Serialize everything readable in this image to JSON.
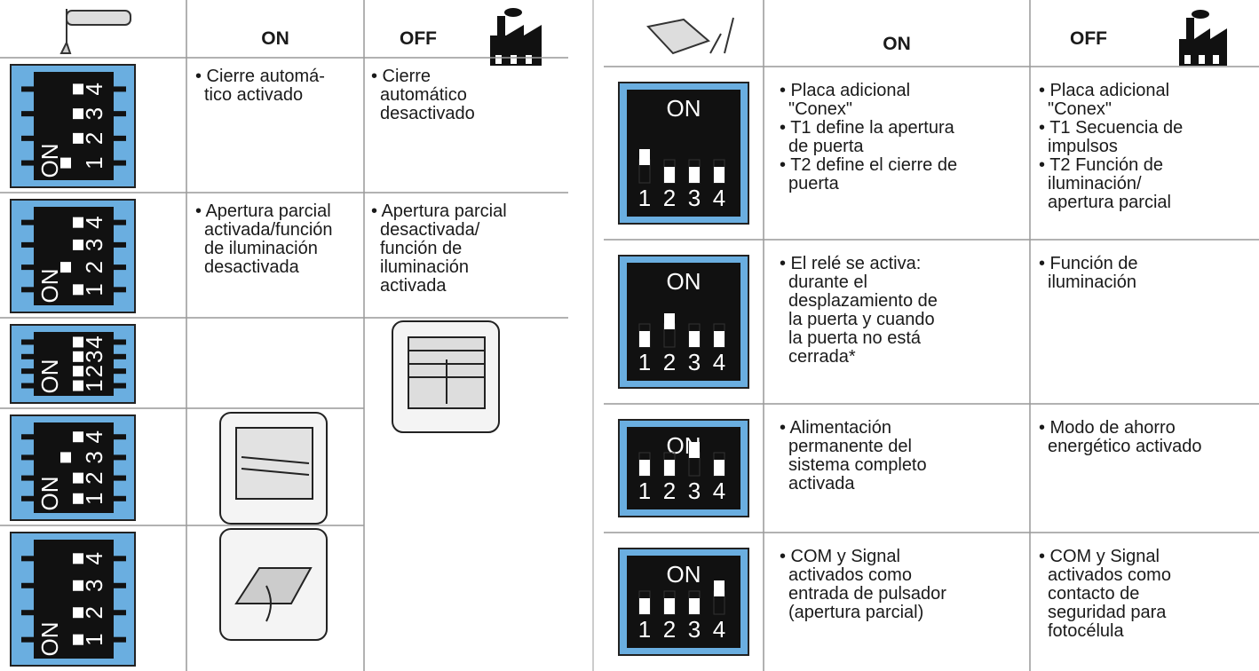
{
  "dip_switch": {
    "on": "ON",
    "numbers": [
      "1",
      "2",
      "3",
      "4"
    ]
  },
  "left_table": {
    "header": {
      "on": "ON",
      "off": "OFF"
    },
    "rows": [
      {
        "on": [
          "• Cierre automá-",
          "tico activado"
        ],
        "off": [
          "• Cierre",
          "automático",
          "desactivado"
        ]
      },
      {
        "on": [
          "• Apertura parcial",
          "activada/función",
          "de iluminación",
          "desactivada"
        ],
        "off": [
          "• Apertura parcial",
          "desactivada/",
          "función de",
          "iluminación",
          "activada"
        ]
      }
    ]
  },
  "right_table": {
    "header": {
      "on": "ON",
      "off": "OFF"
    },
    "rows": [
      {
        "on": [
          "• Placa adicional",
          "\"Conex\"",
          "• T1 define la apertura",
          "de puerta",
          "• T2 define el cierre de",
          "puerta"
        ],
        "off": [
          "• Placa adicional",
          "\"Conex\"",
          "• T1 Secuencia de",
          "impulsos",
          "• T2 Función de",
          "iluminación/",
          "apertura parcial"
        ]
      },
      {
        "on": [
          "• El relé se activa:",
          "durante el",
          "desplazamiento de",
          "la puerta y cuando",
          "la puerta no está",
          "cerrada*"
        ],
        "off": [
          "• Función de",
          "iluminación"
        ]
      },
      {
        "on": [
          "• Alimentación",
          "permanente del",
          "sistema completo",
          "activada"
        ],
        "off": [
          "• Modo de ahorro",
          "energético activado"
        ]
      },
      {
        "on": [
          "• COM y Signal",
          "activados como",
          "entrada de pulsador",
          "(apertura parcial)"
        ],
        "off": [
          "• COM y Signal",
          "activados como",
          "contacto de",
          "seguridad para",
          "fotocélula"
        ]
      }
    ]
  }
}
